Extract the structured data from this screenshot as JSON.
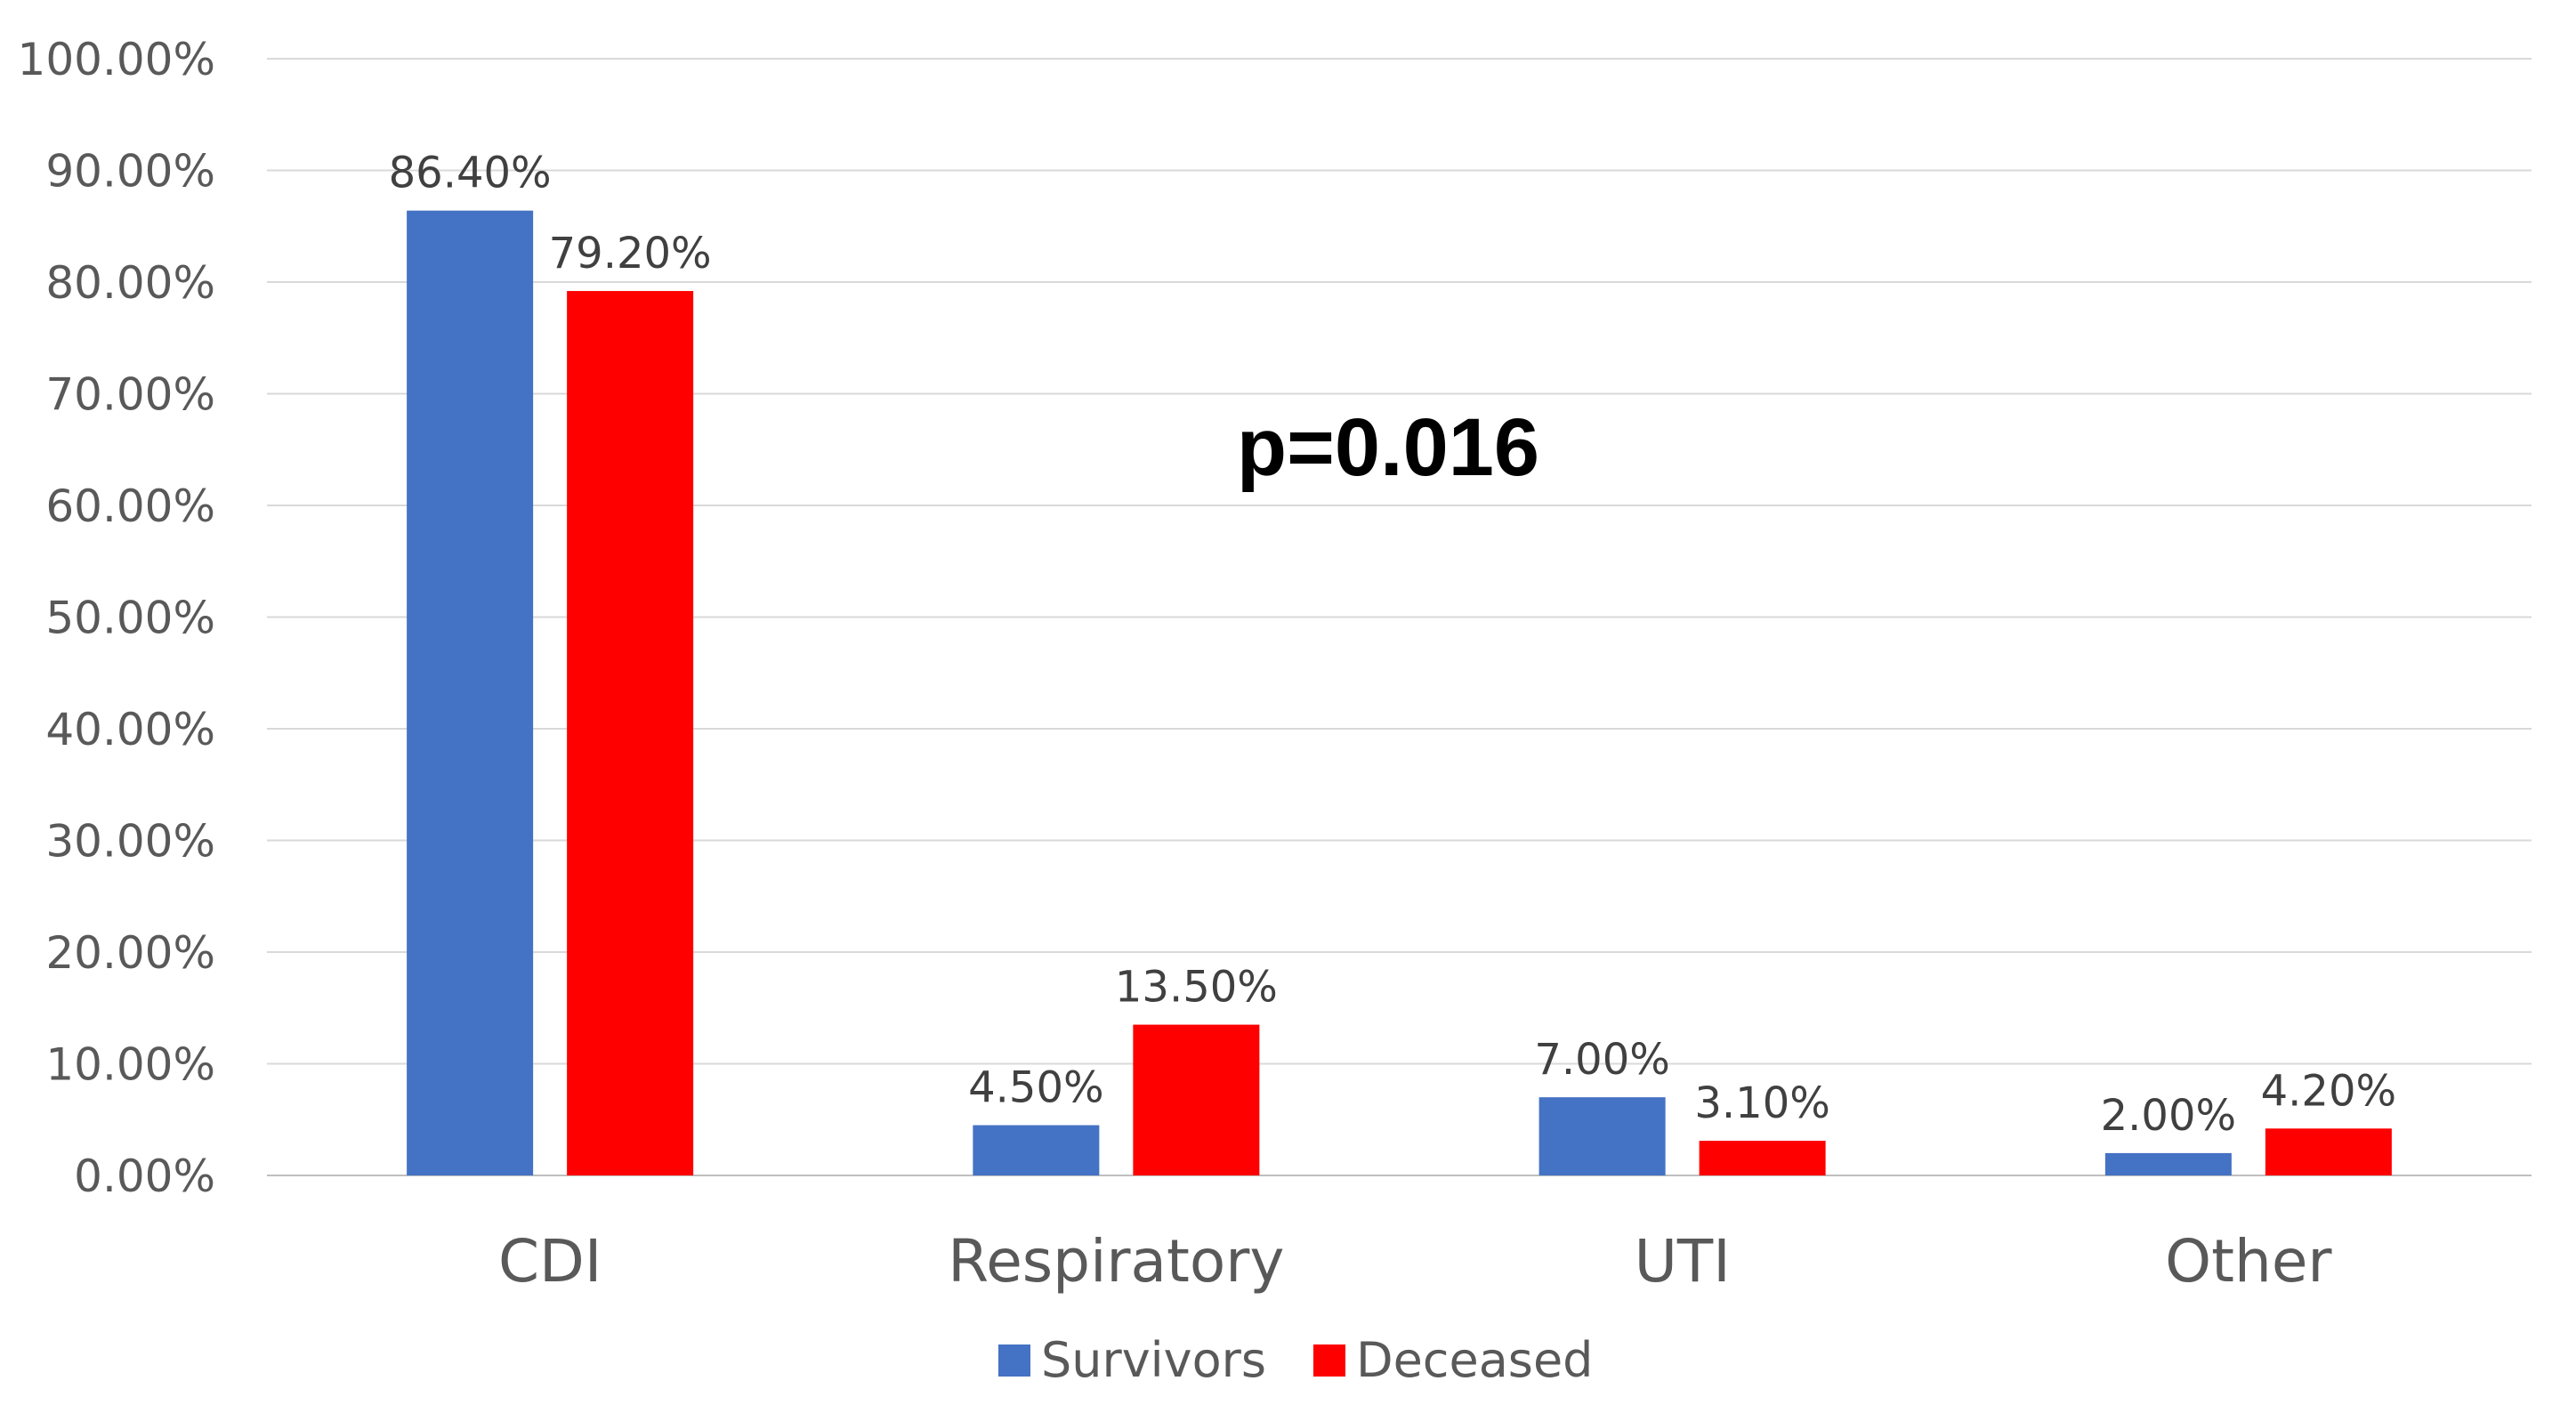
{
  "chart_data": {
    "type": "bar",
    "categories": [
      "CDI",
      "Respiratory",
      "UTI",
      "Other"
    ],
    "series": [
      {
        "name": "Survivors",
        "values": [
          86.4,
          4.5,
          7.0,
          2.0
        ],
        "labels": [
          "86.40%",
          "4.50%",
          "7.00%",
          "2.00%"
        ],
        "color": "#4472C4"
      },
      {
        "name": "Deceased",
        "values": [
          79.2,
          13.5,
          3.1,
          4.2
        ],
        "labels": [
          "79.20%",
          "13.50%",
          "3.10%",
          "4.20%"
        ],
        "color": "#FF0000"
      }
    ],
    "ylim": [
      0,
      100
    ],
    "yticks": [
      "0.00%",
      "10.00%",
      "20.00%",
      "30.00%",
      "40.00%",
      "50.00%",
      "60.00%",
      "70.00%",
      "80.00%",
      "90.00%",
      "100.00%"
    ],
    "title": "",
    "xlabel": "",
    "ylabel": "",
    "annotation": "p=0.016",
    "grid": true,
    "legend_position": "bottom-center"
  }
}
